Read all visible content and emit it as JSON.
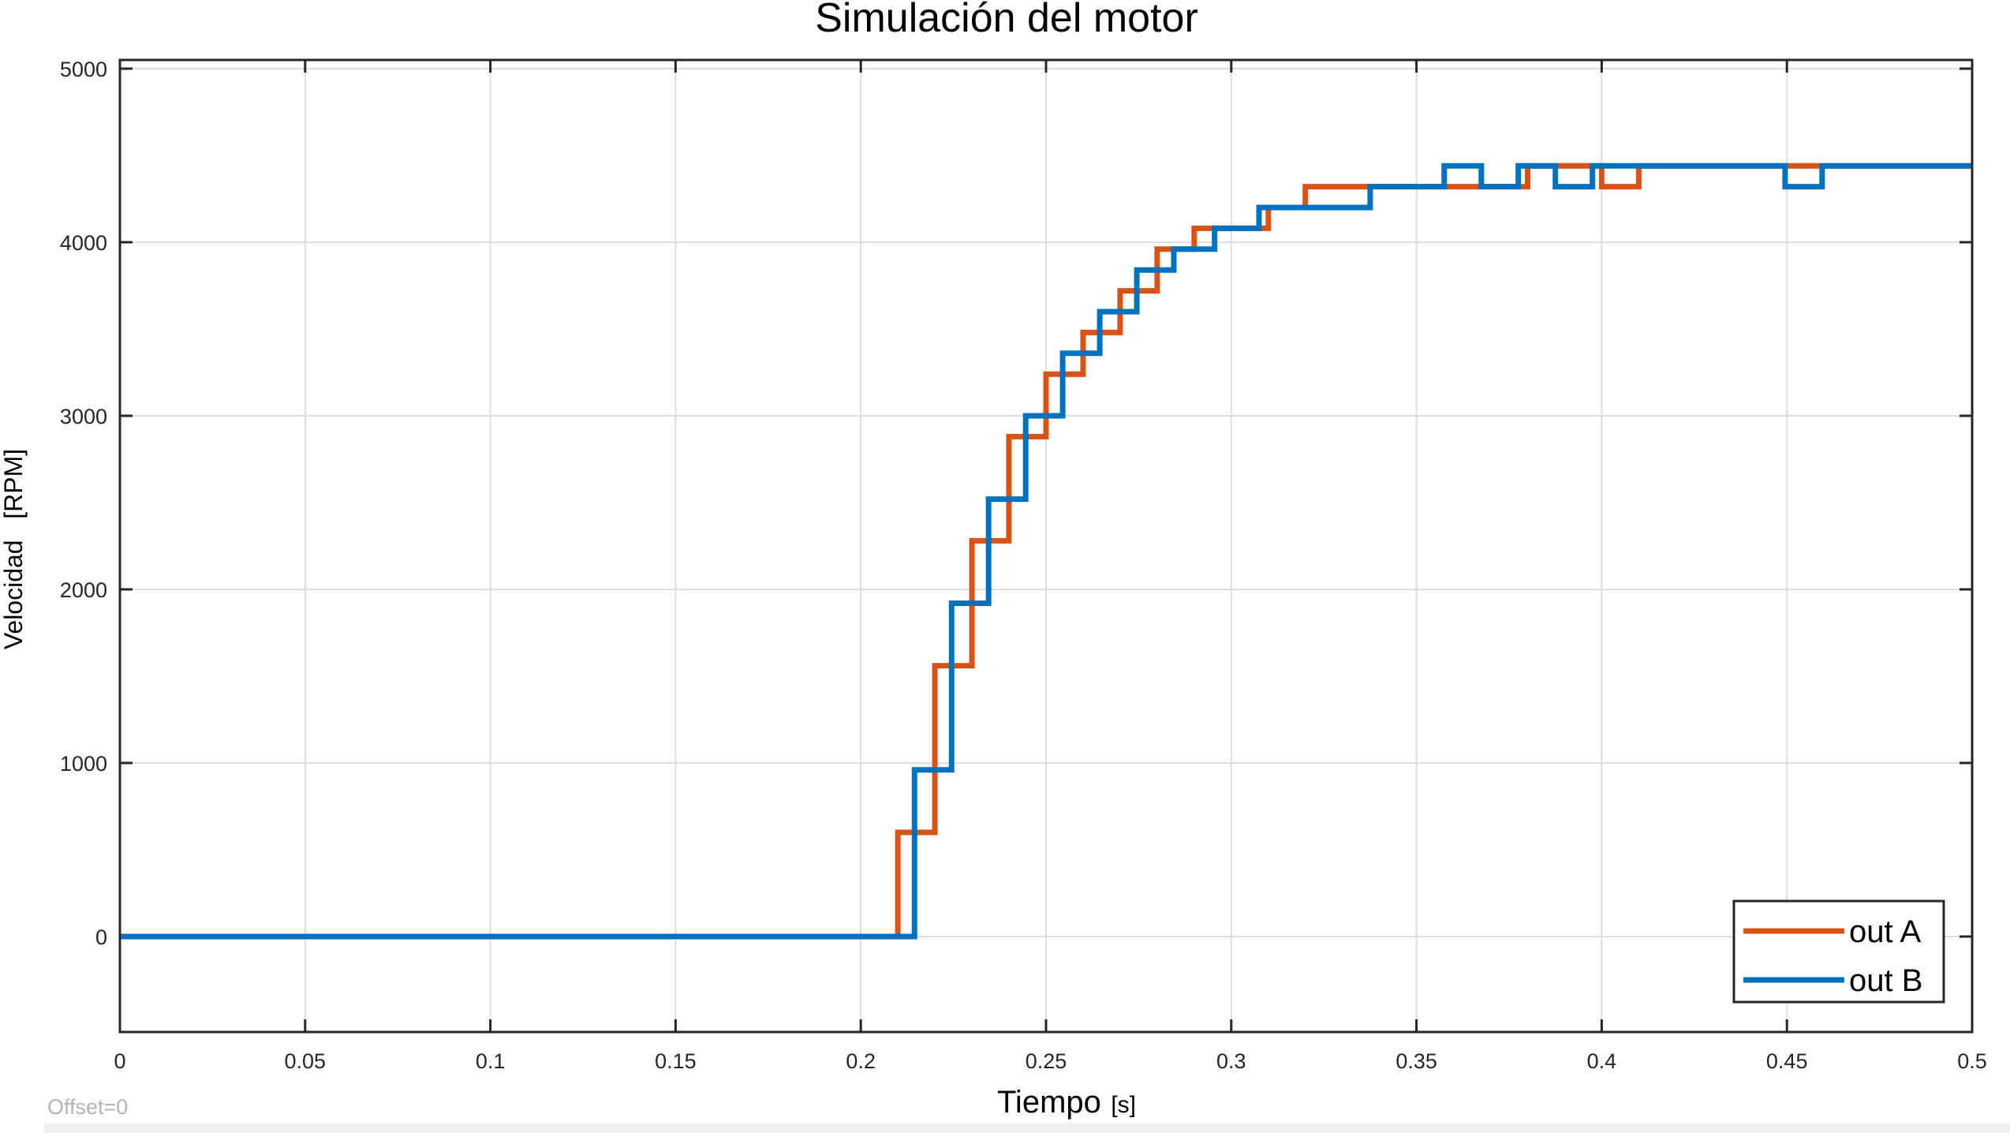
{
  "offset_label": "Offset=0",
  "chart_data": {
    "type": "line",
    "title": "Simulación del motor",
    "xlabel": "Tiempo",
    "xlabel_unit": "[s]",
    "ylabel": "Velocidad   [RPM]",
    "xlim": [
      0,
      0.5
    ],
    "ylim": [
      -550,
      5050
    ],
    "xticks": [
      0,
      0.05,
      0.1,
      0.15,
      0.2,
      0.25,
      0.3,
      0.35,
      0.4,
      0.45,
      0.5
    ],
    "xtick_labels": [
      "0",
      "0.05",
      "0.1",
      "0.15",
      "0.2",
      "0.25",
      "0.3",
      "0.35",
      "0.4",
      "0.45",
      "0.5"
    ],
    "yticks": [
      0,
      1000,
      2000,
      3000,
      4000,
      5000
    ],
    "ytick_labels": [
      "0",
      "1000",
      "2000",
      "3000",
      "4000",
      "5000"
    ],
    "grid": true,
    "legend_position": "bottom-right",
    "step": true,
    "series": [
      {
        "name": "out A",
        "color": "#d95319",
        "x": [
          0,
          0.21,
          0.22,
          0.23,
          0.24,
          0.25,
          0.26,
          0.27,
          0.28,
          0.29,
          0.3,
          0.31,
          0.32,
          0.34,
          0.36,
          0.37,
          0.38,
          0.39,
          0.4,
          0.41,
          0.45,
          0.46,
          0.5
        ],
        "y": [
          0,
          600,
          1560,
          2280,
          2880,
          3240,
          3480,
          3720,
          3960,
          4080,
          4080,
          4200,
          4320,
          4320,
          4320,
          4320,
          4440,
          4440,
          4320,
          4440,
          4440,
          4440,
          4440
        ]
      },
      {
        "name": "out B",
        "color": "#0072bd",
        "x": [
          0,
          0.2145,
          0.2245,
          0.2345,
          0.2445,
          0.2545,
          0.2645,
          0.2745,
          0.2845,
          0.2955,
          0.3075,
          0.3205,
          0.3375,
          0.3575,
          0.3675,
          0.3775,
          0.3875,
          0.3975,
          0.4175,
          0.4495,
          0.4595,
          0.5
        ],
        "y": [
          0,
          960,
          1920,
          2520,
          3000,
          3360,
          3600,
          3840,
          3960,
          4080,
          4200,
          4200,
          4320,
          4440,
          4320,
          4440,
          4320,
          4440,
          4440,
          4320,
          4440,
          4440
        ]
      }
    ]
  }
}
